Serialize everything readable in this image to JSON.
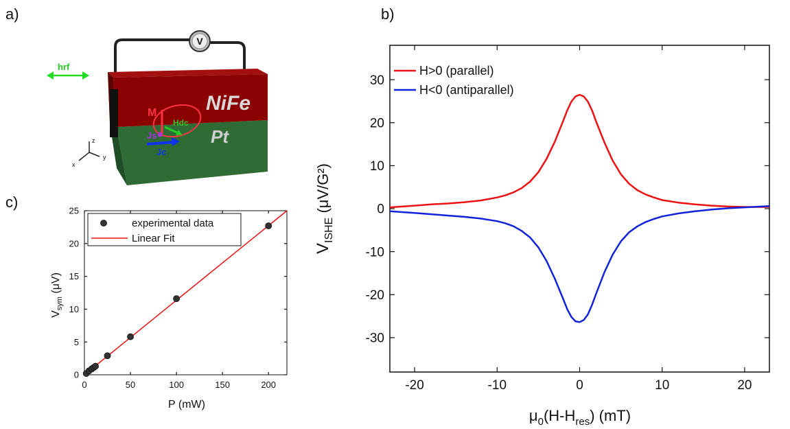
{
  "panels": {
    "a": "a)",
    "b": "b)",
    "c": "c)"
  },
  "schematic": {
    "voltmeter_label": "V",
    "hrf_label": "hrf",
    "nife_label": "NiFe",
    "pt_label": "Pt",
    "m_label": "M",
    "hdc_label": "Hdc",
    "js_label": "Js",
    "jc_label": "Jc",
    "axis_z": "z",
    "axis_x": "x",
    "axis_y": "y",
    "colors": {
      "nife": "#8b0000",
      "pt": "#2e6b35",
      "hrf": "#22dd22",
      "m": "#ff3344",
      "hdc": "#22cc22",
      "js": "#aa33dd",
      "jc": "#1133ee"
    }
  },
  "chart_data": [
    {
      "id": "b",
      "type": "line",
      "xlabel_main": "μ",
      "xlabel_sub0": "0",
      "xlabel_mid": "(H-H",
      "xlabel_sub1": "res",
      "xlabel_end": ") (mT)",
      "ylabel_main": "V",
      "ylabel_sub": "ISHE",
      "ylabel_end": " (μV/G²)",
      "xlim": [
        -23,
        23
      ],
      "ylim": [
        -38,
        38
      ],
      "xticks": [
        -20,
        -10,
        0,
        10,
        20
      ],
      "xtick_labels": [
        "-20",
        "-10",
        "0",
        "10",
        "20"
      ],
      "yticks": [
        -30,
        -20,
        -10,
        0,
        10,
        20,
        30
      ],
      "ytick_labels": [
        "-30",
        "-20",
        "-10",
        "0",
        "10",
        "20",
        "30"
      ],
      "legend_position": "top-left",
      "series": [
        {
          "name": "H>0 (parallel)",
          "color": "#ee1111",
          "x": [
            -23,
            -20,
            -18,
            -16,
            -14,
            -12,
            -10,
            -9,
            -8,
            -7,
            -6,
            -5,
            -4,
            -3,
            -2,
            -1.5,
            -1,
            -0.5,
            0,
            0.5,
            1,
            1.5,
            2,
            3,
            4,
            5,
            6,
            7,
            8,
            9,
            10,
            12,
            14,
            16,
            18,
            20,
            23
          ],
          "values": [
            0.3,
            0.7,
            1.0,
            1.2,
            1.5,
            1.9,
            2.6,
            3.1,
            3.8,
            4.8,
            6.3,
            8.5,
            11.6,
            15.6,
            20.4,
            22.9,
            24.9,
            26.1,
            26.5,
            26.1,
            24.9,
            22.9,
            20.3,
            15.4,
            11.2,
            8.0,
            5.8,
            4.3,
            3.3,
            2.6,
            2.0,
            1.4,
            1.0,
            0.7,
            0.5,
            0.4,
            0.4
          ]
        },
        {
          "name": "H<0 (antiparallel)",
          "color": "#1122dd",
          "x": [
            -23,
            -20,
            -18,
            -16,
            -14,
            -12,
            -10,
            -9,
            -8,
            -7,
            -6,
            -5,
            -4,
            -3,
            -2,
            -1.5,
            -1,
            -0.5,
            0,
            0.5,
            1,
            1.5,
            2,
            3,
            4,
            5,
            6,
            7,
            8,
            9,
            10,
            12,
            14,
            16,
            18,
            20,
            23
          ],
          "values": [
            -0.6,
            -1.0,
            -1.3,
            -1.6,
            -1.9,
            -2.3,
            -2.9,
            -3.4,
            -4.1,
            -5.2,
            -6.7,
            -9.0,
            -12.2,
            -16.3,
            -21.0,
            -23.4,
            -25.2,
            -26.2,
            -26.4,
            -25.9,
            -24.6,
            -22.4,
            -19.8,
            -14.8,
            -10.7,
            -7.6,
            -5.5,
            -4.1,
            -3.1,
            -2.4,
            -1.8,
            -1.1,
            -0.6,
            -0.2,
            0.1,
            0.3,
            0.6
          ]
        }
      ]
    },
    {
      "id": "c",
      "type": "scatter",
      "xlabel": "P (mW)",
      "ylabel_main": "V",
      "ylabel_sub": "sym",
      "ylabel_end": " (μV)",
      "xlim": [
        0,
        220
      ],
      "ylim": [
        0,
        25
      ],
      "xticks": [
        0,
        50,
        100,
        150,
        200
      ],
      "xtick_labels": [
        "0",
        "50",
        "100",
        "150",
        "200"
      ],
      "yticks": [
        0,
        5,
        10,
        15,
        20,
        25
      ],
      "ytick_labels": [
        "0",
        "5",
        "10",
        "15",
        "20",
        "25"
      ],
      "legend_position": "top-left",
      "series": [
        {
          "name": "experimental data",
          "kind": "points",
          "color": "#222222",
          "x": [
            2,
            5,
            8,
            10,
            12,
            25,
            50,
            100,
            200
          ],
          "values": [
            0.2,
            0.6,
            0.9,
            1.1,
            1.3,
            2.9,
            5.8,
            11.6,
            22.7
          ]
        },
        {
          "name": "Linear Fit",
          "kind": "line",
          "color": "#ee1111",
          "x": [
            0,
            220
          ],
          "values": [
            0.0,
            25.0
          ]
        }
      ]
    }
  ]
}
